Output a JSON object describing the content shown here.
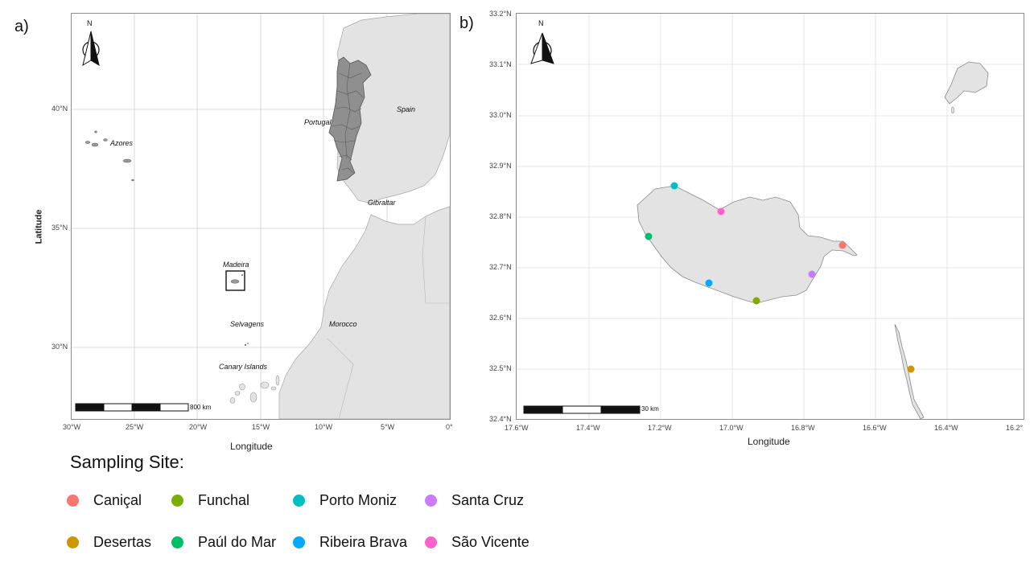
{
  "panels": {
    "a": {
      "label": "a)",
      "north_label": "N",
      "x_title": "Longitude",
      "y_title": "Latitude",
      "x_ticks": [
        "30°W",
        "25°W",
        "20°W",
        "15°W",
        "10°W",
        "5°W",
        "0°"
      ],
      "y_ticks": [
        "40°N",
        "35°N",
        "30°N"
      ],
      "places": {
        "azores": "Azores",
        "portugal": "Portugal",
        "spain": "Spain",
        "gibraltar": "Gibraltar",
        "madeira": "Madeira",
        "selvagens": "Selvagens",
        "morocco": "Morocco",
        "canary": "Canary Islands"
      },
      "scale_label": "800 km"
    },
    "b": {
      "label": "b)",
      "north_label": "N",
      "x_title": "Longitude",
      "x_ticks": [
        "17.6°W",
        "17.4°W",
        "17.2°W",
        "17.0°W",
        "16.8°W",
        "16.6°W",
        "16.4°W",
        "16.2°"
      ],
      "y_ticks": [
        "33.2°N",
        "33.1°N",
        "33.0°N",
        "32.9°N",
        "32.8°N",
        "32.7°N",
        "32.6°N",
        "32.5°N",
        "32.4°N"
      ],
      "scale_label": "30 km"
    }
  },
  "legend": {
    "title": "Sampling Site:",
    "items": [
      {
        "label": "Caniçal",
        "color": "#F8766D"
      },
      {
        "label": "Funchal",
        "color": "#7CAE00"
      },
      {
        "label": "Porto Moniz",
        "color": "#00BFC4"
      },
      {
        "label": "Santa Cruz",
        "color": "#C77CFF"
      },
      {
        "label": "Desertas",
        "color": "#CD9600"
      },
      {
        "label": "Paúl do Mar",
        "color": "#00BE67"
      },
      {
        "label": "Ribeira Brava",
        "color": "#00A9FF"
      },
      {
        "label": "São Vicente",
        "color": "#FF61CC"
      }
    ]
  },
  "colors": {
    "land": "#e3e3e3",
    "portugal": "#8f8f8f",
    "grid": "#d0d0d0",
    "border": "#8c8c8c"
  }
}
